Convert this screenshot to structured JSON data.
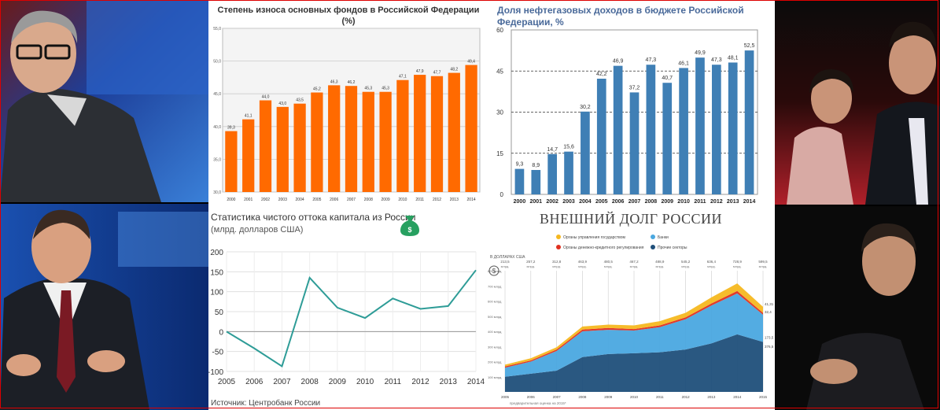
{
  "colors": {
    "orange_bar": "#ff6a00",
    "blue_bar": "#3f7fb5",
    "teal_line": "#2e9c97",
    "border_red": "#d40000"
  },
  "photos": [
    {
      "position": "top-left",
      "description": "studio guest in glasses"
    },
    {
      "position": "bottom-left",
      "description": "news anchor gesturing"
    },
    {
      "position": "top-right",
      "description": "studio participant and audience"
    },
    {
      "position": "bottom-right",
      "description": "host in dark suit"
    }
  ],
  "chart_data": [
    {
      "type": "bar",
      "title": "Степень износа основных фондов в Российской Федерации",
      "subtitle": "(%)",
      "categories": [
        "2000",
        "2001",
        "2002",
        "2003",
        "2004",
        "2005",
        "2006",
        "2007",
        "2008",
        "2009",
        "2010",
        "2011",
        "2012",
        "2013",
        "2014"
      ],
      "values": [
        39.3,
        41.1,
        44.0,
        43.0,
        43.5,
        45.2,
        46.3,
        46.2,
        45.3,
        45.3,
        47.1,
        47.9,
        47.7,
        48.2,
        49.4
      ],
      "value_labels": [
        "39,3",
        "41,1",
        "44,0",
        "43,0",
        "43,5",
        "45,2",
        "46,3",
        "46,2",
        "45,3",
        "45,3",
        "47,1",
        "47,9",
        "47,7",
        "48,2",
        "49,4"
      ],
      "yticks": [
        "30,0",
        "35,0",
        "40,0",
        "45,0",
        "50,0",
        "55,0"
      ],
      "ylim": [
        30,
        55
      ],
      "grid": true
    },
    {
      "type": "bar",
      "title": "Доля нефтегазовых доходов в бюджете Российской Федерации, %",
      "categories": [
        "2000",
        "2001",
        "2002",
        "2003",
        "2004",
        "2005",
        "2006",
        "2007",
        "2008",
        "2009",
        "2010",
        "2011",
        "2012",
        "2013",
        "2014"
      ],
      "values": [
        9.3,
        8.9,
        14.7,
        15.6,
        30.2,
        42.2,
        46.9,
        37.2,
        47.3,
        40.7,
        46.1,
        49.9,
        47.3,
        48.1,
        52.5
      ],
      "value_labels": [
        "9,3",
        "8,9",
        "14,7",
        "15,6",
        "30,2",
        "42,2",
        "46,9",
        "37,2",
        "47,3",
        "40,7",
        "46,1",
        "49,9",
        "47,3",
        "48,1",
        "52,5"
      ],
      "yticks": [
        "0",
        "15",
        "30",
        "45",
        "60"
      ],
      "ylim": [
        0,
        60
      ],
      "grid": true
    },
    {
      "type": "line",
      "title": "Статистика чистого оттока капитала из России",
      "subtitle": "(млрд. долларов США)",
      "source": "Источник: Центробанк России",
      "icon": "money-bag-icon",
      "x": [
        "2005",
        "2006",
        "2007",
        "2008",
        "2009",
        "2010",
        "2011",
        "2012",
        "2013",
        "2014"
      ],
      "values": [
        0,
        -42,
        -87,
        135,
        60,
        34,
        83,
        57,
        64,
        154
      ],
      "yticks": [
        "-100",
        "-50",
        "0",
        "50",
        "100",
        "150",
        "200"
      ],
      "ylim": [
        -100,
        200
      ],
      "grid": true
    },
    {
      "type": "area",
      "title": "ВНЕШНИЙ ДОЛГ РОССИИ",
      "legend": [
        {
          "name": "Органы управления государством",
          "color": "#f5b820"
        },
        {
          "name": "Банки",
          "color": "#4aa8e0"
        },
        {
          "name": "Органы денежно-кредитного регулирования",
          "color": "#e03020"
        },
        {
          "name": "Прочие секторы",
          "color": "#1f4f7a"
        }
      ],
      "unit": "В ДОЛЛАРАХ США",
      "currency_icon": "$",
      "x": [
        "2005",
        "2006",
        "2007",
        "2008",
        "2009",
        "2010",
        "2011",
        "2012",
        "2013",
        "2014",
        "2015"
      ],
      "totals": [
        "213,5",
        "257,2",
        "312,8",
        "463,9",
        "480,5",
        "467,2",
        "488,9",
        "545,2",
        "636,4",
        "728,9",
        "599,5"
      ],
      "totals_unit": "млрд.",
      "yticks": [
        "100 млрд",
        "200 млрд",
        "300 млрд",
        "400 млрд",
        "500 млрд",
        "600 млрд",
        "700 млрд",
        "800 млрд"
      ],
      "ylim": [
        0,
        800
      ],
      "end_labels": [
        "41,31",
        "32,4",
        "173,5",
        "376,5"
      ],
      "footnote": "предварительная оценка на 2015*",
      "series": [
        {
          "name": "Прочие секторы",
          "values": [
            100,
            120,
            140,
            230,
            250,
            255,
            262,
            280,
            320,
            380,
            330
          ]
        },
        {
          "name": "Банки",
          "values": [
            60,
            80,
            130,
            170,
            160,
            150,
            165,
            200,
            250,
            270,
            180
          ]
        },
        {
          "name": "Органы денежно-кредитного регулирования",
          "values": [
            8,
            8,
            10,
            12,
            12,
            10,
            12,
            12,
            14,
            16,
            12
          ]
        },
        {
          "name": "Органы управления государством",
          "values": [
            12,
            14,
            15,
            20,
            22,
            24,
            28,
            30,
            40,
            50,
            40
          ]
        }
      ]
    }
  ]
}
